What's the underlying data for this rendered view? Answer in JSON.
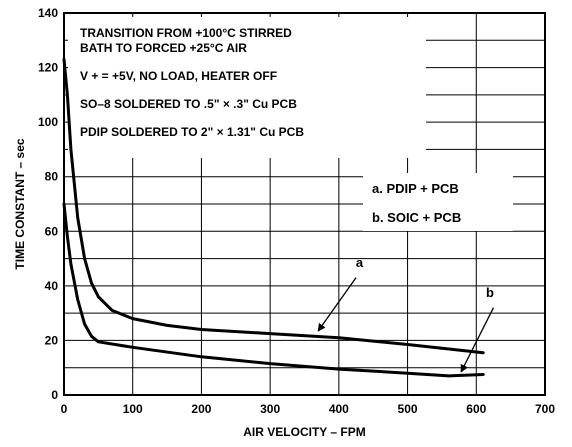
{
  "chart_data": {
    "type": "line",
    "title": "",
    "xlabel": "AIR VELOCITY – FPM",
    "ylabel": "TIME CONSTANT – sec",
    "xlim": [
      0,
      700
    ],
    "ylim": [
      0,
      140
    ],
    "x_ticks": [
      0,
      100,
      200,
      300,
      400,
      500,
      600,
      700
    ],
    "y_ticks": [
      0,
      20,
      40,
      60,
      80,
      100,
      120,
      140
    ],
    "grid": true,
    "notes": [
      "TRANSITION FROM  +100°C STIRRED",
      "BATH TO FORCED  +25°C AIR",
      "V + =  +5V, NO LOAD, HEATER OFF",
      "SO–8 SOLDERED TO .5\"  × .3\" Cu PCB",
      "PDIP SOLDERED TO 2\"  × 1.31\" Cu PCB"
    ],
    "legend": [
      "a. PDIP  + PCB",
      "b. SOIC  + PCB"
    ],
    "legend_position": "right",
    "series": [
      {
        "name": "a",
        "x": [
          0,
          5,
          10,
          20,
          30,
          40,
          50,
          70,
          100,
          150,
          200,
          300,
          400,
          500,
          610
        ],
        "y": [
          123,
          110,
          90,
          65,
          50,
          41,
          36,
          31,
          28,
          25.5,
          24,
          22.5,
          21,
          18.5,
          15.5
        ]
      },
      {
        "name": "b",
        "x": [
          0,
          5,
          10,
          20,
          30,
          40,
          50,
          100,
          200,
          300,
          400,
          500,
          560,
          610
        ],
        "y": [
          70,
          58,
          48,
          35,
          26,
          21.5,
          19.5,
          17.5,
          14,
          11.5,
          9.5,
          8,
          7,
          7.5
        ]
      }
    ]
  }
}
